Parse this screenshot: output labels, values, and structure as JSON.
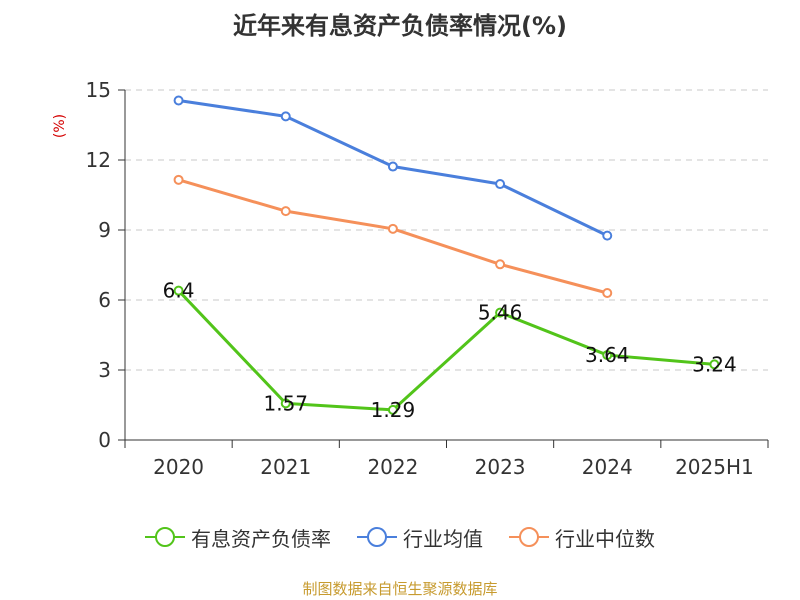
{
  "chart_data": {
    "type": "line",
    "title": "近年来有息资产负债率情况(%)",
    "ylabel": "(%)",
    "xlabel": "",
    "categories": [
      "2020",
      "2021",
      "2022",
      "2023",
      "2024",
      "2025H1"
    ],
    "ylim": [
      0,
      15
    ],
    "yticks": [
      "0",
      "3",
      "6",
      "9",
      "12",
      "15"
    ],
    "grid": true,
    "legend_position": "bottom",
    "series": [
      {
        "name": "有息资产负债率",
        "color": "#52c41a",
        "values": [
          6.4,
          1.57,
          1.29,
          5.46,
          3.64,
          3.24
        ],
        "labels": [
          "6.4",
          "1.57",
          "1.29",
          "5.46",
          "3.64",
          "3.24"
        ]
      },
      {
        "name": "行业均值",
        "color": "#4a7fdc",
        "values": [
          14.55,
          13.87,
          11.72,
          10.97,
          8.76,
          null
        ]
      },
      {
        "name": "行业中位数",
        "color": "#f5905a",
        "values": [
          11.15,
          9.81,
          9.05,
          7.53,
          6.3,
          null
        ]
      }
    ],
    "source": "制图数据来自恒生聚源数据库"
  }
}
